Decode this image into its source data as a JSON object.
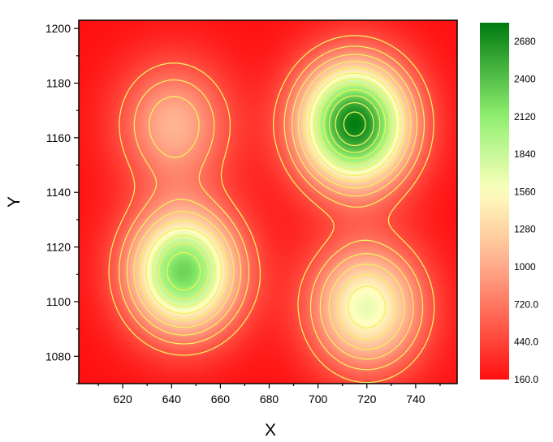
{
  "chart_data": {
    "type": "heatmap",
    "subtype": "filled-contour",
    "title": "",
    "xlabel": "X",
    "ylabel": "Y",
    "xlim": [
      602,
      757
    ],
    "ylim": [
      1070,
      1203
    ],
    "x_ticks": [
      620,
      640,
      660,
      680,
      700,
      720,
      740
    ],
    "y_ticks": [
      1080,
      1100,
      1120,
      1140,
      1160,
      1180,
      1200
    ],
    "grid": false,
    "peaks": [
      {
        "x": 715,
        "y": 1165,
        "z_peak": 2800
      },
      {
        "x": 645,
        "y": 1111,
        "z_peak": 2280
      },
      {
        "x": 720,
        "y": 1098,
        "z_peak": 1660
      },
      {
        "x": 641,
        "y": 1165,
        "z_peak": 1060
      }
    ],
    "z_range": [
      160,
      2820
    ],
    "contour_color": "#f2f060",
    "colorbar": {
      "position": "right",
      "ticks": [
        "2680",
        "2400",
        "2120",
        "1840",
        "1560",
        "1280",
        "1000",
        "720.0",
        "440.0",
        "160.0"
      ],
      "tick_values": [
        2680,
        2400,
        2120,
        1840,
        1560,
        1280,
        1000,
        720,
        440,
        160
      ],
      "colormap": [
        {
          "value": 160,
          "color": "#ff1010"
        },
        {
          "value": 1000,
          "color": "#ffaa8a"
        },
        {
          "value": 1560,
          "color": "#ffffc0"
        },
        {
          "value": 2120,
          "color": "#90f070"
        },
        {
          "value": 2820,
          "color": "#007a10"
        }
      ]
    }
  }
}
